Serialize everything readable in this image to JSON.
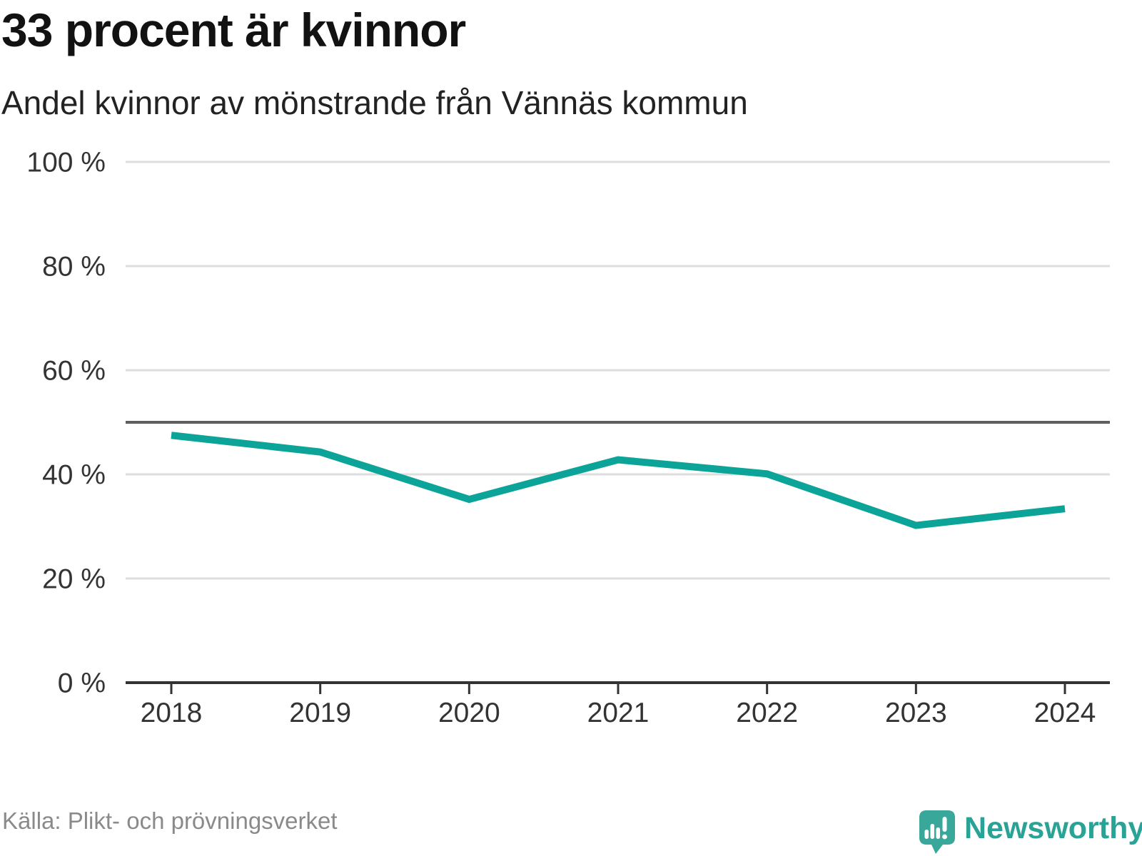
{
  "header": {
    "title": "33 procent är kvinnor",
    "subtitle": "Andel kvinnor av mönstrande från Vännäs kommun"
  },
  "chart_data": {
    "type": "line",
    "x": [
      2018,
      2019,
      2020,
      2021,
      2022,
      2023,
      2024
    ],
    "series": [
      {
        "name": "Andel kvinnor av mönstrande",
        "values": [
          47.5,
          44.3,
          35.2,
          42.8,
          40.1,
          30.2,
          33.4
        ]
      }
    ],
    "title": "33 procent är kvinnor",
    "subtitle": "Andel kvinnor av mönstrande från Vännäs kommun",
    "xlabel": "",
    "ylabel": "",
    "ylim": [
      0,
      100
    ],
    "yticks": [
      0,
      20,
      40,
      60,
      80,
      100
    ],
    "ytick_suffix": " %",
    "reference_line": 50,
    "grid": true,
    "legend_position": "none"
  },
  "colors": {
    "line": "#0ca398",
    "grid": "#dedede",
    "reference": "#5f5f5f",
    "axis": "#333333",
    "tick_label": "#333333",
    "brand_teal": "#3aa79b"
  },
  "footer": {
    "source": "Källa: Plikt- och prövningsverket",
    "brand": "Newsworthy",
    "brand_icon": "speech-bubble-bar-chart-icon"
  }
}
